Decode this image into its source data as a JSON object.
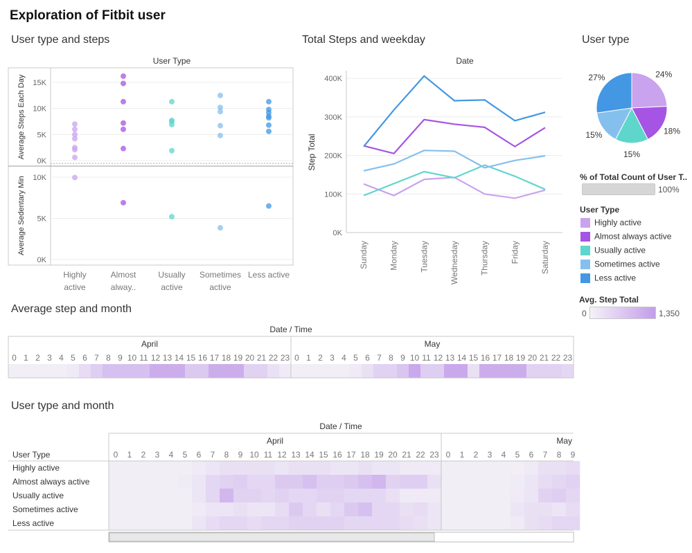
{
  "dashboard_title": "Exploration of Fitbit user",
  "colors": {
    "highly_active": "#c9a3ee",
    "almost_always_active": "#a554e3",
    "usually_active": "#5fd6cc",
    "sometimes_active": "#85bfee",
    "less_active": "#4397e3",
    "grid": "#ececec",
    "axis": "#c8c8c8"
  },
  "chart_data": [
    {
      "id": "user_type_steps",
      "type": "scatter",
      "title": "User type and steps",
      "column_header": "User Type",
      "categories": [
        "Highly active",
        "Almost alwaya..",
        "Usually active",
        "Sometimes active",
        "Less active"
      ],
      "category_lines": [
        [
          "Highly",
          "active"
        ],
        [
          "Almost",
          "alway.."
        ],
        [
          "Usually",
          "active"
        ],
        [
          "Sometimes",
          "active"
        ],
        [
          "Less active"
        ]
      ],
      "panels": [
        {
          "ylabel": "Average Steps Each Day",
          "ylim": [
            0,
            17000
          ],
          "ticks": [
            0,
            5000,
            10000,
            15000
          ],
          "tick_labels": [
            "0K",
            "5K",
            "10K",
            "15K"
          ],
          "points": [
            [
              7000,
              6000,
              5000,
              4200,
              2500,
              2100,
              600
            ],
            [
              16200,
              14800,
              11300,
              7200,
              6000,
              2300
            ],
            [
              11300,
              7700,
              7500,
              6900,
              1900
            ],
            [
              12500,
              10200,
              9400,
              6700,
              4800
            ],
            [
              11300,
              9800,
              9200,
              8500,
              8200,
              6800,
              5600
            ]
          ]
        },
        {
          "ylabel": "Average Sedentary Min",
          "ylim": [
            0,
            10500
          ],
          "ticks": [
            0,
            5000,
            10000
          ],
          "tick_labels": [
            "0K",
            "5K",
            "10K"
          ],
          "points": [
            [
              9950
            ],
            [
              6900
            ],
            [
              5200
            ],
            [
              3850
            ],
            [
              6500
            ]
          ]
        }
      ]
    },
    {
      "id": "steps_weekday",
      "type": "line",
      "title": "Total Steps and weekday",
      "column_header": "Date",
      "ylabel": "Step Total",
      "categories": [
        "Sunday",
        "Monday",
        "Tuesday",
        "Wednesday",
        "Thursday",
        "Friday",
        "Saturday"
      ],
      "ylim": [
        0,
        420000
      ],
      "ticks": [
        0,
        100000,
        200000,
        300000,
        400000
      ],
      "tick_labels": [
        "0K",
        "100K",
        "200K",
        "300K",
        "400K"
      ],
      "series": [
        {
          "name": "Highly active",
          "values": [
            126000,
            96000,
            138000,
            143000,
            100000,
            89000,
            110000
          ]
        },
        {
          "name": "Almost always active",
          "values": [
            225000,
            205000,
            293000,
            281000,
            273000,
            223000,
            272000
          ]
        },
        {
          "name": "Usually active",
          "values": [
            96000,
            127000,
            158000,
            142000,
            175000,
            146000,
            112000
          ]
        },
        {
          "name": "Sometimes active",
          "values": [
            160000,
            178000,
            213000,
            211000,
            168000,
            187000,
            199000
          ]
        },
        {
          "name": "Less active",
          "values": [
            223000,
            318000,
            406000,
            342000,
            344000,
            290000,
            312000
          ]
        }
      ]
    },
    {
      "id": "user_type_pie",
      "type": "pie",
      "title": "User type",
      "slices": [
        {
          "name": "Highly active",
          "value": 24,
          "label": "24%"
        },
        {
          "name": "Almost always active",
          "value": 18,
          "label": "18%"
        },
        {
          "name": "Usually active",
          "value": 15,
          "label": "15%"
        },
        {
          "name": "Sometimes active",
          "value": 15,
          "label": "15%"
        },
        {
          "name": "Less active",
          "value": 27,
          "label": "27%"
        }
      ]
    },
    {
      "id": "avg_step_month",
      "type": "heatmap",
      "title": "Average step and month",
      "header": "Date  /  Time",
      "groups": [
        {
          "month": "April",
          "hours": [
            "0",
            "1",
            "2",
            "3",
            "4",
            "5",
            "6",
            "7",
            "8",
            "9",
            "10",
            "11",
            "12",
            "13",
            "14",
            "15",
            "16",
            "17",
            "18",
            "19",
            "20",
            "21",
            "22",
            "23"
          ],
          "values": [
            0.05,
            0.05,
            0.05,
            0.05,
            0.05,
            0.1,
            0.25,
            0.4,
            0.55,
            0.55,
            0.55,
            0.55,
            0.75,
            0.75,
            0.75,
            0.45,
            0.45,
            0.75,
            0.75,
            0.75,
            0.35,
            0.35,
            0.2,
            0.1
          ]
        },
        {
          "month": "May",
          "hours": [
            "0",
            "1",
            "2",
            "3",
            "4",
            "5",
            "6",
            "7",
            "8",
            "9",
            "10",
            "11",
            "12",
            "13",
            "14",
            "15",
            "16",
            "17",
            "18",
            "19",
            "20",
            "21",
            "22",
            "23"
          ],
          "values": [
            0.05,
            0.05,
            0.05,
            0.05,
            0.05,
            0.1,
            0.2,
            0.35,
            0.35,
            0.5,
            0.8,
            0.4,
            0.4,
            0.8,
            0.8,
            0.2,
            0.75,
            0.75,
            0.75,
            0.75,
            0.35,
            0.35,
            0.35,
            0.3
          ]
        }
      ]
    },
    {
      "id": "user_type_month",
      "type": "heatmap",
      "title": "User type and month",
      "header": "Date  /  Time",
      "row_header": "User Type",
      "rows": [
        "Highly active",
        "Almost always active",
        "Usually active",
        "Sometimes active",
        "Less active"
      ],
      "groups": [
        {
          "month": "April",
          "hours": [
            "0",
            "1",
            "2",
            "3",
            "4",
            "5",
            "6",
            "7",
            "8",
            "9",
            "10",
            "11",
            "12",
            "13",
            "14",
            "15",
            "16",
            "17",
            "18",
            "19",
            "20",
            "21",
            "22",
            "23"
          ]
        },
        {
          "month": "May",
          "hours": [
            "0",
            "1",
            "2",
            "3",
            "4",
            "5",
            "6",
            "7",
            "8",
            "9"
          ]
        }
      ],
      "values": [
        [
          0.05,
          0.05,
          0.05,
          0.05,
          0.05,
          0.05,
          0.1,
          0.15,
          0.2,
          0.2,
          0.2,
          0.2,
          0.15,
          0.2,
          0.2,
          0.2,
          0.15,
          0.15,
          0.2,
          0.15,
          0.15,
          0.1,
          0.1,
          0.1,
          0.05,
          0.05,
          0.05,
          0.05,
          0.05,
          0.05,
          0.1,
          0.2,
          0.2,
          0.25
        ],
        [
          0.05,
          0.05,
          0.05,
          0.05,
          0.05,
          0.08,
          0.15,
          0.3,
          0.35,
          0.4,
          0.3,
          0.3,
          0.45,
          0.45,
          0.55,
          0.4,
          0.4,
          0.45,
          0.55,
          0.65,
          0.35,
          0.4,
          0.4,
          0.2,
          0.05,
          0.05,
          0.05,
          0.05,
          0.05,
          0.08,
          0.15,
          0.25,
          0.3,
          0.35
        ],
        [
          0.05,
          0.05,
          0.05,
          0.05,
          0.05,
          0.05,
          0.15,
          0.3,
          0.65,
          0.35,
          0.35,
          0.3,
          0.35,
          0.3,
          0.3,
          0.35,
          0.35,
          0.3,
          0.3,
          0.3,
          0.2,
          0.1,
          0.1,
          0.1,
          0.05,
          0.05,
          0.05,
          0.05,
          0.05,
          0.1,
          0.15,
          0.35,
          0.4,
          0.3
        ],
        [
          0.05,
          0.05,
          0.05,
          0.05,
          0.05,
          0.05,
          0.1,
          0.15,
          0.15,
          0.2,
          0.15,
          0.15,
          0.25,
          0.45,
          0.3,
          0.2,
          0.3,
          0.45,
          0.55,
          0.3,
          0.3,
          0.2,
          0.25,
          0.15,
          0.05,
          0.05,
          0.05,
          0.05,
          0.05,
          0.15,
          0.2,
          0.2,
          0.15,
          0.25
        ],
        [
          0.05,
          0.05,
          0.05,
          0.05,
          0.05,
          0.05,
          0.15,
          0.25,
          0.3,
          0.3,
          0.25,
          0.3,
          0.3,
          0.35,
          0.35,
          0.35,
          0.35,
          0.3,
          0.3,
          0.3,
          0.3,
          0.25,
          0.2,
          0.15,
          0.05,
          0.05,
          0.05,
          0.05,
          0.05,
          0.1,
          0.2,
          0.25,
          0.3,
          0.3
        ]
      ]
    }
  ],
  "legend": {
    "pct_title": "% of Total Count of User T..",
    "pct_value": "100%",
    "pct_fill": 1.0,
    "user_type_title": "User Type",
    "items": [
      "Highly active",
      "Almost always active",
      "Usually active",
      "Sometimes active",
      "Less active"
    ],
    "avg_title": "Avg. Step Total",
    "avg_min": "0",
    "avg_max": "1,350"
  }
}
